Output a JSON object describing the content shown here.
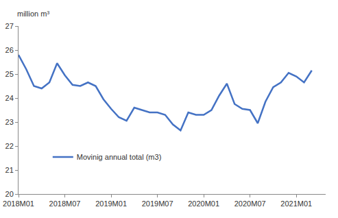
{
  "chart_data": {
    "type": "line",
    "y_label": "million m³",
    "categories": [
      "2018M01",
      null,
      null,
      null,
      null,
      null,
      "2018M07",
      null,
      null,
      null,
      null,
      null,
      "2019M01",
      null,
      null,
      null,
      null,
      null,
      "2019M07",
      null,
      null,
      null,
      null,
      null,
      "2020M01",
      null,
      null,
      null,
      null,
      null,
      "2020M07",
      null,
      null,
      null,
      null,
      null,
      "2021M01",
      null,
      null
    ],
    "series": [
      {
        "name": "Movinig annual total (m3)",
        "color": "#4472c4",
        "values": [
          25.8,
          25.2,
          24.5,
          24.4,
          24.65,
          25.45,
          24.95,
          24.55,
          24.5,
          24.65,
          24.5,
          23.95,
          23.55,
          23.2,
          23.05,
          23.6,
          23.5,
          23.4,
          23.4,
          23.3,
          22.9,
          22.65,
          23.4,
          23.3,
          23.3,
          23.5,
          24.1,
          24.6,
          23.75,
          23.55,
          23.5,
          22.95,
          23.85,
          24.45,
          24.65,
          25.05,
          24.9,
          24.65,
          25.15
        ]
      }
    ],
    "ylim": [
      20,
      27
    ],
    "yticks": [
      20,
      21,
      22,
      23,
      24,
      25,
      26,
      27
    ],
    "grid": false,
    "legend": "lower left"
  }
}
